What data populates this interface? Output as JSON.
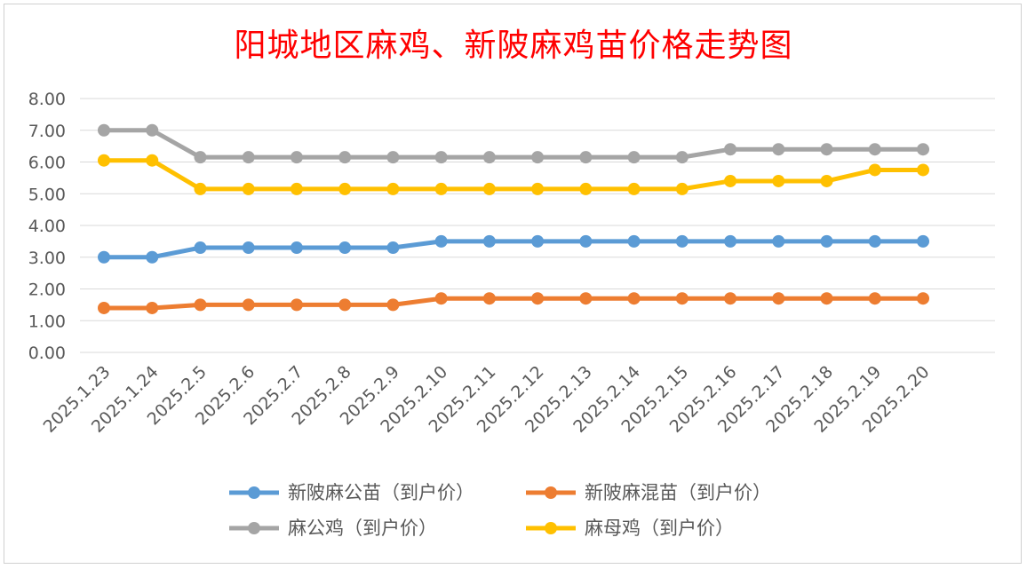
{
  "chart_data": {
    "type": "line",
    "title": "阳城地区麻鸡、新陂麻鸡苗价格走势图",
    "xlabel": "",
    "ylabel": "",
    "ylim": [
      0,
      8
    ],
    "yticks": [
      "0.00",
      "1.00",
      "2.00",
      "3.00",
      "4.00",
      "5.00",
      "6.00",
      "7.00",
      "8.00"
    ],
    "grid": true,
    "legend_position": "bottom",
    "categories": [
      "2025.1.23",
      "2025.1.24",
      "2025.2.5",
      "2025.2.6",
      "2025.2.7",
      "2025.2.8",
      "2025.2.9",
      "2025.2.10",
      "2025.2.11",
      "2025.2.12",
      "2025.2.13",
      "2025.2.14",
      "2025.2.15",
      "2025.2.16",
      "2025.2.17",
      "2025.2.18",
      "2025.2.19",
      "2025.2.20"
    ],
    "series": [
      {
        "name": "新陂麻公苗（到户价）",
        "color": "#5b9bd5",
        "values": [
          3.0,
          3.0,
          3.3,
          3.3,
          3.3,
          3.3,
          3.3,
          3.5,
          3.5,
          3.5,
          3.5,
          3.5,
          3.5,
          3.5,
          3.5,
          3.5,
          3.5,
          3.5
        ]
      },
      {
        "name": "新陂麻混苗（到户价）",
        "color": "#ed7d31",
        "values": [
          1.4,
          1.4,
          1.5,
          1.5,
          1.5,
          1.5,
          1.5,
          1.7,
          1.7,
          1.7,
          1.7,
          1.7,
          1.7,
          1.7,
          1.7,
          1.7,
          1.7,
          1.7
        ]
      },
      {
        "name": "麻公鸡（到户价）",
        "color": "#a5a5a5",
        "values": [
          7.0,
          7.0,
          6.15,
          6.15,
          6.15,
          6.15,
          6.15,
          6.15,
          6.15,
          6.15,
          6.15,
          6.15,
          6.15,
          6.4,
          6.4,
          6.4,
          6.4,
          6.4
        ]
      },
      {
        "name": "麻母鸡（到户价）",
        "color": "#ffc000",
        "values": [
          6.05,
          6.05,
          5.15,
          5.15,
          5.15,
          5.15,
          5.15,
          5.15,
          5.15,
          5.15,
          5.15,
          5.15,
          5.15,
          5.4,
          5.4,
          5.4,
          5.75,
          5.75
        ]
      }
    ]
  }
}
